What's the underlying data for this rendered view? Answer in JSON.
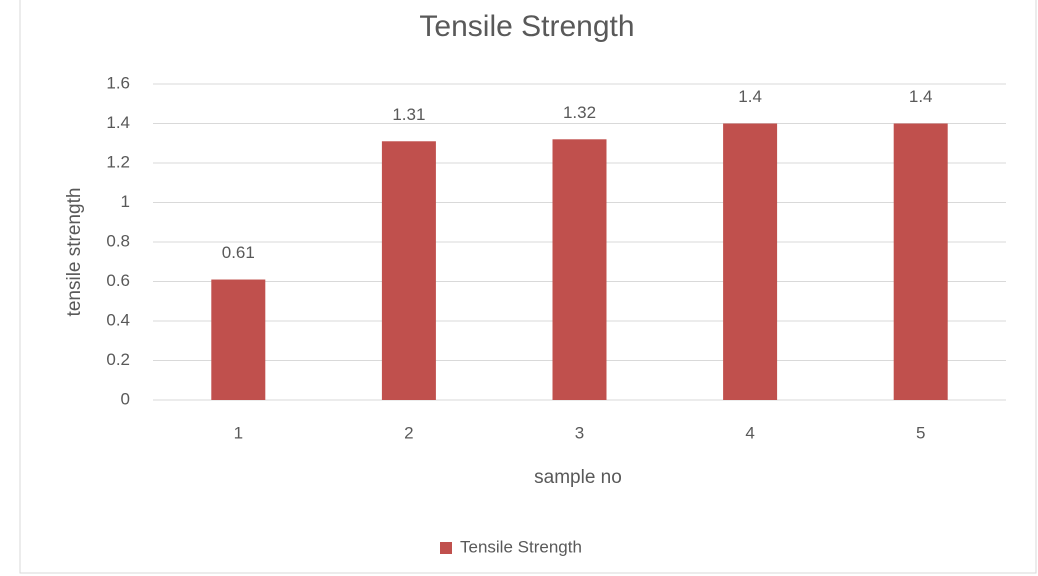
{
  "chart_data": {
    "type": "bar",
    "title": "Tensile Strength",
    "x_label": "sample no",
    "y_label": "tensile strength",
    "categories": [
      "1",
      "2",
      "3",
      "4",
      "5"
    ],
    "series": [
      {
        "name": "Tensile Strength",
        "color": "#c0504d",
        "values": [
          0.61,
          1.31,
          1.32,
          1.4,
          1.4
        ]
      }
    ],
    "ylim": [
      0,
      1.6
    ],
    "yticks": [
      0,
      0.2,
      0.4,
      0.6,
      0.8,
      1,
      1.2,
      1.4,
      1.6
    ],
    "grid": true,
    "data_labels": true,
    "legend": "bottom"
  }
}
